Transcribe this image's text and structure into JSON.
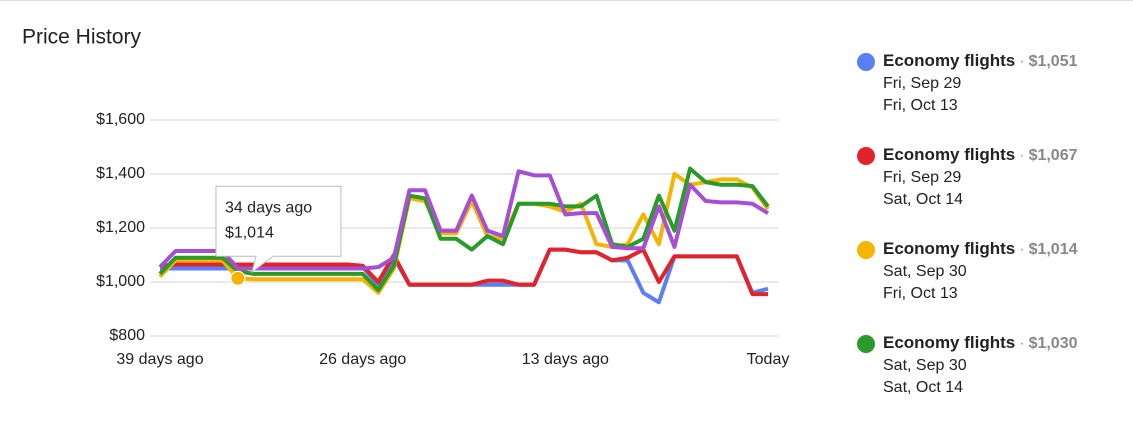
{
  "chart_data": {
    "type": "line",
    "title": "Price History",
    "x": [
      -39,
      -38,
      -37,
      -36,
      -35,
      -34,
      -33,
      -32,
      -31,
      -30,
      -29,
      -28,
      -27,
      -26,
      -25,
      -24,
      -23,
      -22,
      -21,
      -20,
      -19,
      -18,
      -17,
      -16,
      -15,
      -14,
      -13,
      -12,
      -11,
      -10,
      -9,
      -8,
      -7,
      -6,
      -5,
      -4,
      -3,
      -2,
      -1,
      0
    ],
    "xlim": [
      -39,
      0
    ],
    "xticks": [
      {
        "value": -39,
        "label": "39 days ago"
      },
      {
        "value": -26,
        "label": "26 days ago"
      },
      {
        "value": -13,
        "label": "13 days ago"
      },
      {
        "value": 0,
        "label": "Today"
      }
    ],
    "ylim": [
      800,
      1600
    ],
    "yticks": [
      {
        "value": 800,
        "label": "$800"
      },
      {
        "value": 1000,
        "label": "$1,000"
      },
      {
        "value": 1200,
        "label": "$1,200"
      },
      {
        "value": 1400,
        "label": "$1,400"
      },
      {
        "value": 1600,
        "label": "$1,600"
      }
    ],
    "grid": true,
    "series": [
      {
        "name": "Economy flights",
        "price": "$1,051",
        "dates": [
          "Fri, Sep 29",
          "Fri, Oct 13"
        ],
        "color": "#5a7ef5",
        "values": [
          1050,
          1050,
          1050,
          1050,
          1050,
          1050,
          1050,
          1050,
          1050,
          1050,
          1050,
          1050,
          1050,
          1055,
          990,
          1090,
          990,
          990,
          990,
          990,
          990,
          990,
          990,
          990,
          990,
          1120,
          1120,
          1110,
          1110,
          1080,
          1080,
          960,
          925,
          1095,
          1095,
          1095,
          1095,
          1095,
          960,
          975
        ]
      },
      {
        "name": "Economy flights",
        "price": "$1,067",
        "dates": [
          "Fri, Sep 29",
          "Sat, Oct 14"
        ],
        "color": "#e2242a",
        "values": [
          1060,
          1065,
          1065,
          1065,
          1065,
          1065,
          1065,
          1065,
          1065,
          1065,
          1065,
          1065,
          1065,
          1060,
          1000,
          1100,
          990,
          990,
          990,
          990,
          990,
          1005,
          1005,
          990,
          990,
          1120,
          1120,
          1110,
          1110,
          1080,
          1090,
          1120,
          1000,
          1095,
          1095,
          1095,
          1095,
          1095,
          955,
          955
        ]
      },
      {
        "name": "Economy flights",
        "price": "$1,014",
        "dates": [
          "Sat, Sep 30",
          "Fri, Oct 13"
        ],
        "color": "#f6b400",
        "values": [
          1020,
          1080,
          1080,
          1080,
          1080,
          1014,
          1010,
          1010,
          1010,
          1010,
          1010,
          1010,
          1010,
          1010,
          960,
          1050,
          1310,
          1300,
          1180,
          1180,
          1300,
          1170,
          1160,
          1290,
          1290,
          1280,
          1260,
          1290,
          1140,
          1130,
          1140,
          1250,
          1140,
          1400,
          1360,
          1370,
          1380,
          1380,
          1350,
          1270
        ]
      },
      {
        "name": "Economy flights",
        "price": "$1,030",
        "dates": [
          "Sat, Sep 30",
          "Sat, Oct 14"
        ],
        "color": "#2a9a2a",
        "values": [
          1030,
          1090,
          1090,
          1090,
          1090,
          1040,
          1030,
          1030,
          1030,
          1030,
          1030,
          1030,
          1030,
          1030,
          970,
          1060,
          1320,
          1310,
          1160,
          1160,
          1120,
          1170,
          1140,
          1290,
          1290,
          1290,
          1280,
          1280,
          1320,
          1140,
          1130,
          1160,
          1320,
          1190,
          1420,
          1370,
          1360,
          1360,
          1355,
          1280
        ]
      },
      {
        "color": "#a64fd4",
        "values": [
          1055,
          1115,
          1115,
          1115,
          1115,
          1050,
          1050,
          1050,
          1050,
          1050,
          1050,
          1050,
          1050,
          1050,
          1055,
          1090,
          1340,
          1340,
          1190,
          1190,
          1320,
          1190,
          1170,
          1410,
          1395,
          1395,
          1250,
          1255,
          1255,
          1130,
          1125,
          1125,
          1280,
          1130,
          1360,
          1300,
          1295,
          1295,
          1290,
          1255
        ]
      }
    ],
    "tooltip": {
      "x": -34,
      "y": 1014,
      "series": 2,
      "lines": [
        "34 days ago",
        "$1,014"
      ]
    }
  }
}
